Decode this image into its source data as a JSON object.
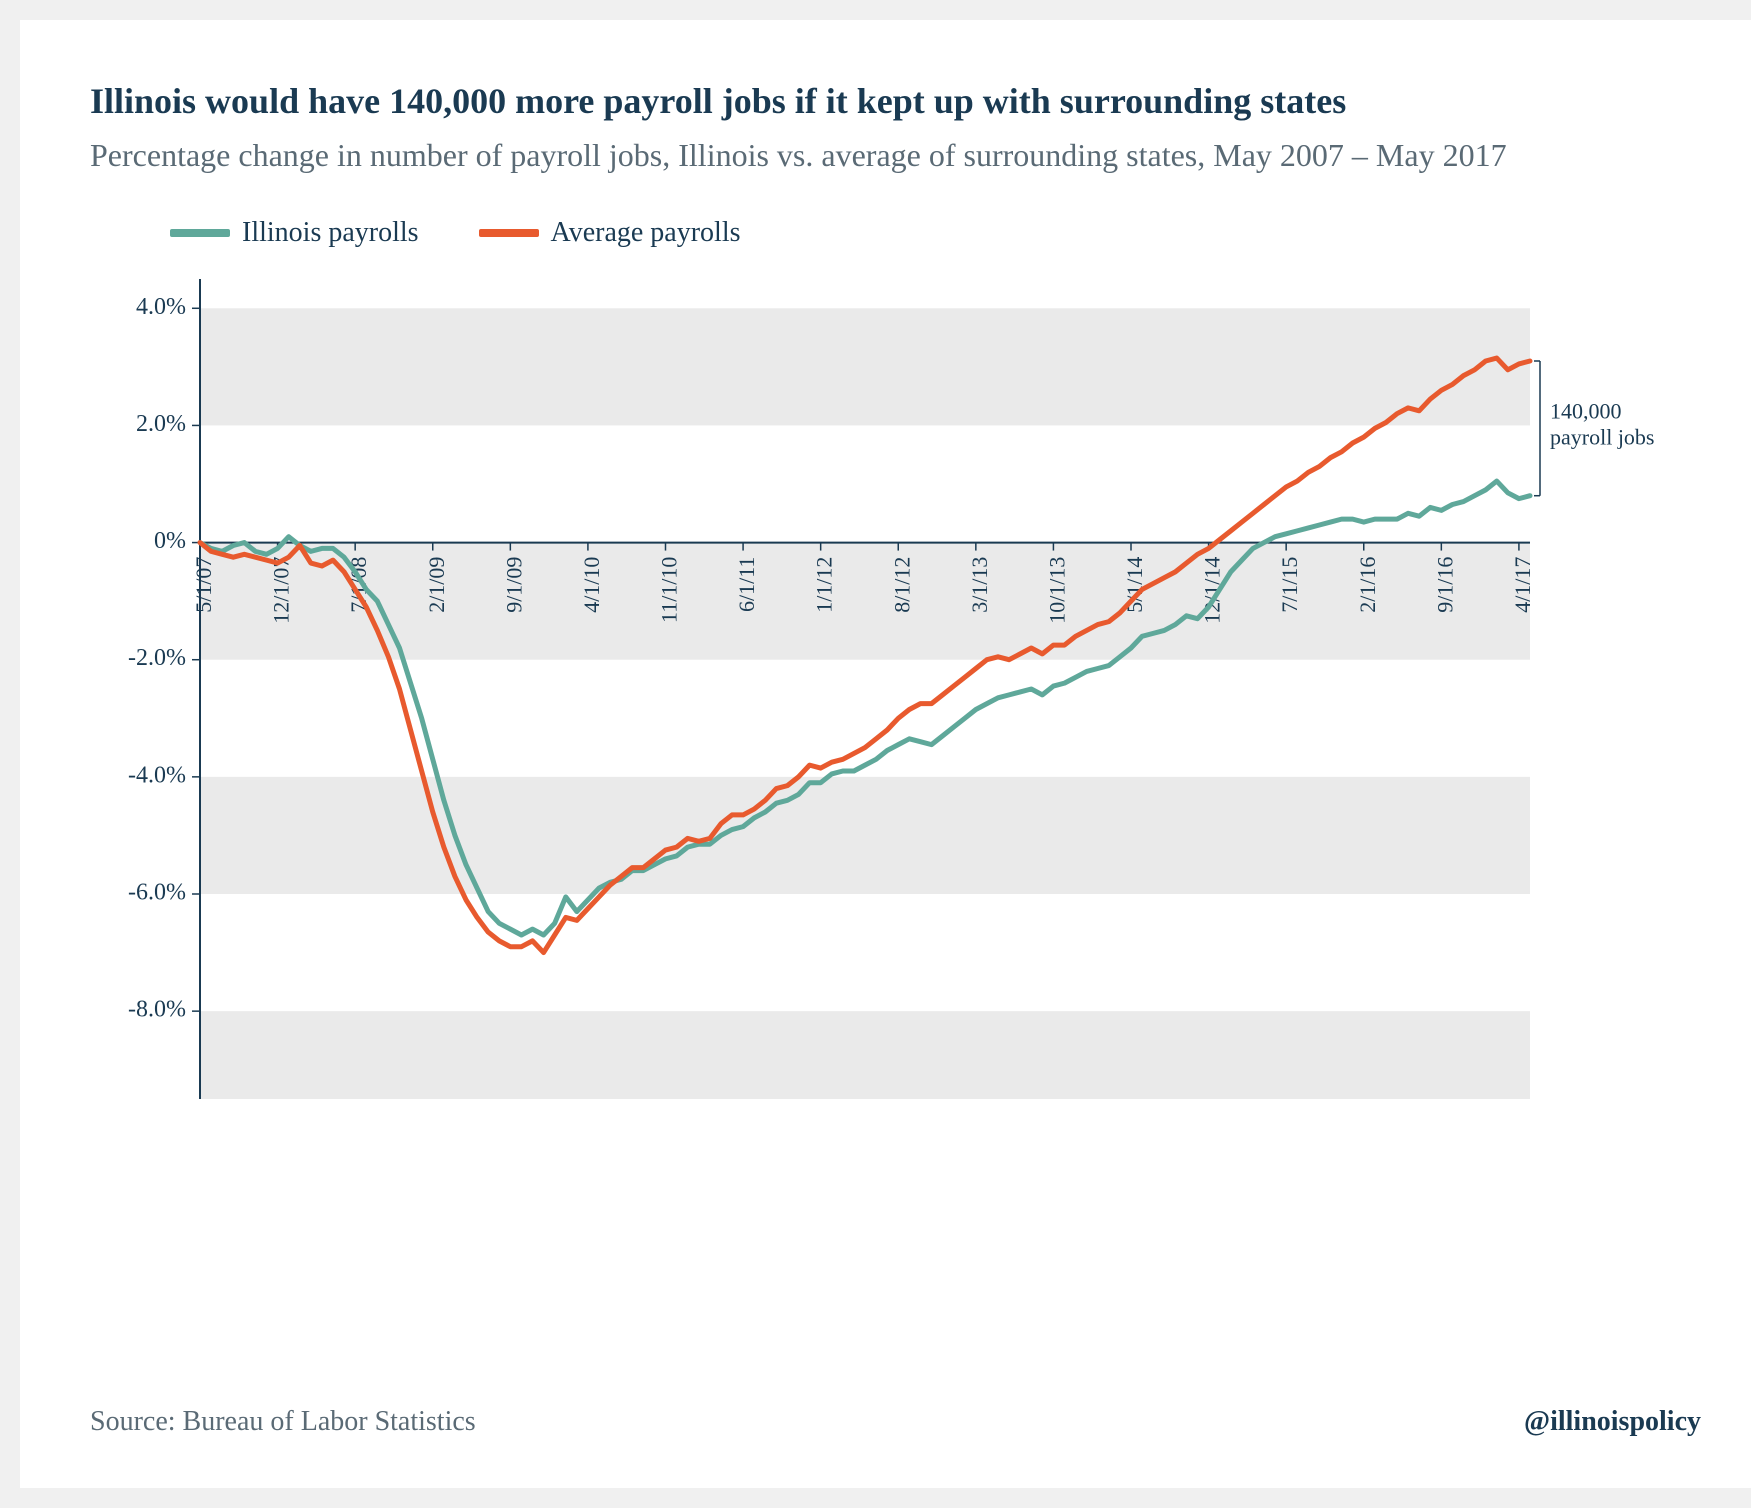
{
  "title": "Illinois would have 140,000 more payroll jobs if it kept up with surrounding states",
  "subtitle": "Percentage change in number of payroll jobs, Illinois vs. average of surrounding states, May 2007 – May 2017",
  "legend": {
    "series1": "Illinois payrolls",
    "series2": "Average payrolls"
  },
  "source": "Source: Bureau of Labor Statistics",
  "handle": "@illinoispolicy",
  "annotation": {
    "line1": "140,000",
    "line2": "payroll jobs"
  },
  "chart": {
    "type": "line",
    "colors": {
      "illinois": "#5fa89a",
      "average": "#e85a2e",
      "band": "#eaeaea",
      "axis": "#1a3a52",
      "text_primary": "#1a3a52",
      "text_secondary": "#5a6a75",
      "background": "#ffffff"
    },
    "ylim": [
      -9.5,
      4.5
    ],
    "yticks": [
      {
        "v": 4.0,
        "label": "4.0%"
      },
      {
        "v": 2.0,
        "label": "2.0%"
      },
      {
        "v": 0.0,
        "label": "0%"
      },
      {
        "v": -2.0,
        "label": "-2.0%"
      },
      {
        "v": -4.0,
        "label": "-4.0%"
      },
      {
        "v": -6.0,
        "label": "-6.0%"
      },
      {
        "v": -8.0,
        "label": "-8.0%"
      }
    ],
    "bands": [
      {
        "from": 4.0,
        "to": 2.0
      },
      {
        "from": 0.0,
        "to": -2.0
      },
      {
        "from": -4.0,
        "to": -6.0
      },
      {
        "from": -8.0,
        "to": -9.5
      }
    ],
    "n_points": 121,
    "xticks_idx": [
      0,
      7,
      14,
      21,
      28,
      35,
      42,
      49,
      56,
      63,
      70,
      77,
      84,
      91,
      98,
      105,
      112,
      119
    ],
    "xtick_labels": [
      "5/1/07",
      "12/1/07",
      "7/1/08",
      "2/1/09",
      "9/1/09",
      "4/1/10",
      "11/1/10",
      "6/1/11",
      "1/1/12",
      "8/1/12",
      "3/1/13",
      "10/1/13",
      "5/1/14",
      "12/1/14",
      "7/1/15",
      "2/1/16",
      "9/1/16",
      "4/1/17"
    ],
    "line_width": 5,
    "illinois": [
      0.0,
      -0.1,
      -0.15,
      -0.05,
      0.0,
      -0.15,
      -0.2,
      -0.1,
      0.1,
      -0.05,
      -0.15,
      -0.1,
      -0.1,
      -0.25,
      -0.5,
      -0.8,
      -1.0,
      -1.4,
      -1.8,
      -2.4,
      -3.0,
      -3.7,
      -4.4,
      -5.0,
      -5.5,
      -5.9,
      -6.3,
      -6.5,
      -6.6,
      -6.7,
      -6.6,
      -6.7,
      -6.5,
      -6.05,
      -6.3,
      -6.1,
      -5.9,
      -5.8,
      -5.75,
      -5.6,
      -5.6,
      -5.5,
      -5.4,
      -5.35,
      -5.2,
      -5.15,
      -5.15,
      -5.0,
      -4.9,
      -4.85,
      -4.7,
      -4.6,
      -4.45,
      -4.4,
      -4.3,
      -4.1,
      -4.1,
      -3.95,
      -3.9,
      -3.9,
      -3.8,
      -3.7,
      -3.55,
      -3.45,
      -3.35,
      -3.4,
      -3.45,
      -3.3,
      -3.15,
      -3.0,
      -2.85,
      -2.75,
      -2.65,
      -2.6,
      -2.55,
      -2.5,
      -2.6,
      -2.45,
      -2.4,
      -2.3,
      -2.2,
      -2.15,
      -2.1,
      -1.95,
      -1.8,
      -1.6,
      -1.55,
      -1.5,
      -1.4,
      -1.25,
      -1.3,
      -1.1,
      -0.8,
      -0.5,
      -0.3,
      -0.1,
      0.0,
      0.1,
      0.15,
      0.2,
      0.25,
      0.3,
      0.35,
      0.4,
      0.4,
      0.35,
      0.4,
      0.4,
      0.4,
      0.5,
      0.45,
      0.6,
      0.55,
      0.65,
      0.7,
      0.8,
      0.9,
      1.05,
      0.85,
      0.75,
      0.8
    ],
    "average": [
      0.0,
      -0.15,
      -0.2,
      -0.25,
      -0.2,
      -0.25,
      -0.3,
      -0.35,
      -0.25,
      -0.05,
      -0.35,
      -0.4,
      -0.3,
      -0.5,
      -0.8,
      -1.1,
      -1.5,
      -1.95,
      -2.5,
      -3.2,
      -3.9,
      -4.6,
      -5.2,
      -5.7,
      -6.1,
      -6.4,
      -6.65,
      -6.8,
      -6.9,
      -6.9,
      -6.8,
      -7.0,
      -6.7,
      -6.4,
      -6.45,
      -6.25,
      -6.05,
      -5.85,
      -5.7,
      -5.55,
      -5.55,
      -5.4,
      -5.25,
      -5.2,
      -5.05,
      -5.1,
      -5.05,
      -4.8,
      -4.65,
      -4.65,
      -4.55,
      -4.4,
      -4.2,
      -4.15,
      -4.0,
      -3.8,
      -3.85,
      -3.75,
      -3.7,
      -3.6,
      -3.5,
      -3.35,
      -3.2,
      -3.0,
      -2.85,
      -2.75,
      -2.75,
      -2.6,
      -2.45,
      -2.3,
      -2.15,
      -2.0,
      -1.95,
      -2.0,
      -1.9,
      -1.8,
      -1.9,
      -1.75,
      -1.75,
      -1.6,
      -1.5,
      -1.4,
      -1.35,
      -1.2,
      -1.0,
      -0.8,
      -0.7,
      -0.6,
      -0.5,
      -0.35,
      -0.2,
      -0.1,
      0.05,
      0.2,
      0.35,
      0.5,
      0.65,
      0.8,
      0.95,
      1.05,
      1.2,
      1.3,
      1.45,
      1.55,
      1.7,
      1.8,
      1.95,
      2.05,
      2.2,
      2.3,
      2.25,
      2.45,
      2.6,
      2.7,
      2.85,
      2.95,
      3.1,
      3.15,
      2.95,
      3.05,
      3.1
    ]
  }
}
